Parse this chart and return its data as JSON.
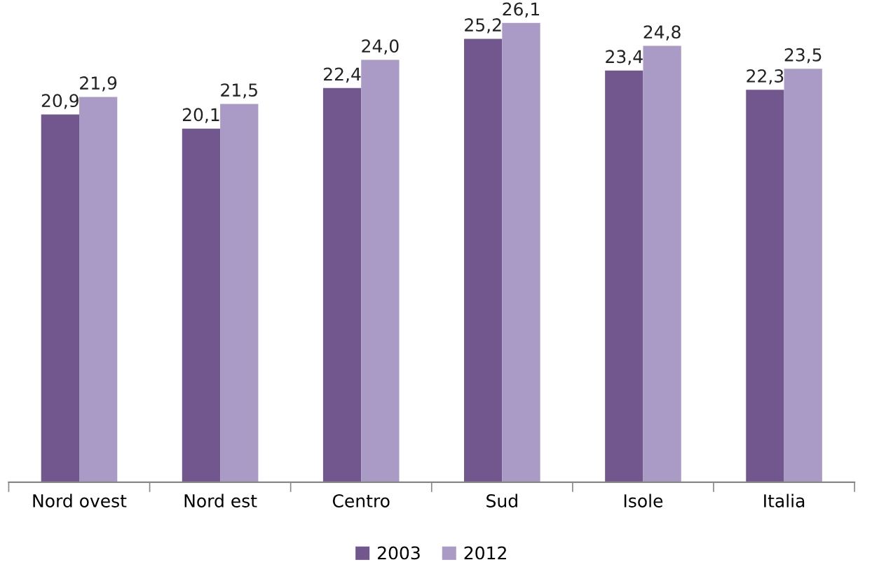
{
  "chart_data": {
    "type": "bar",
    "categories": [
      "Nord ovest",
      "Nord est",
      "Centro",
      "Sud",
      "Isole",
      "Italia"
    ],
    "series": [
      {
        "name": "2003",
        "color": "#72578f",
        "values": [
          20.9,
          20.1,
          22.4,
          25.2,
          23.4,
          22.3
        ],
        "value_labels": [
          "20,9",
          "20,1",
          "22,4",
          "25,2",
          "23,4",
          "22,3"
        ]
      },
      {
        "name": "2012",
        "color": "#a99bc6",
        "values": [
          21.9,
          21.5,
          24.0,
          26.1,
          24.8,
          23.5
        ],
        "value_labels": [
          "21,9",
          "21,5",
          "24,0",
          "26,1",
          "24,8",
          "23,5"
        ]
      }
    ],
    "grid": false,
    "legend": "bottom",
    "tick_labels": "x"
  }
}
